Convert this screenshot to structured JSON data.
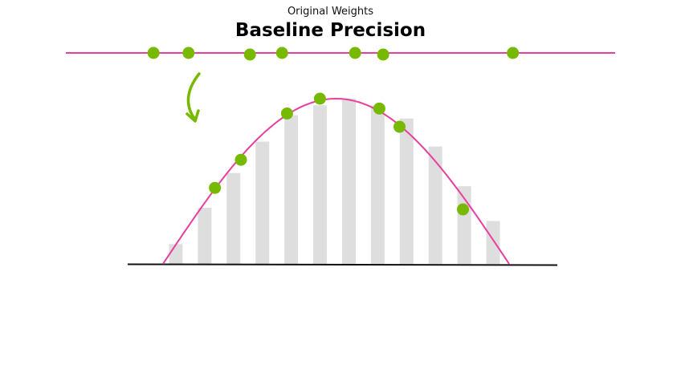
{
  "header": {
    "subtitle": "Original Weights",
    "title": "Baseline Precision"
  },
  "colors": {
    "curve": "#e83e9e",
    "weight_point": "#76b900",
    "bar": "#dedede",
    "axis": "#111111",
    "arrow": "#76b900"
  },
  "icons": {
    "arrow": "curved-down-arrow-icon"
  },
  "diagram": {
    "weights_line": {
      "x_range": [
        -4.7,
        4.7
      ]
    },
    "weights": [
      -3.2,
      -2.6,
      -1.55,
      -1.0,
      0.25,
      0.73,
      2.95
    ],
    "distribution": {
      "x_range": [
        -3,
        3
      ],
      "bins": [
        -2.75,
        -2.25,
        -1.75,
        -1.25,
        -0.75,
        -0.25,
        0.25,
        0.75,
        1.25,
        1.75,
        2.25,
        2.75
      ],
      "bar_heights": [
        0.12,
        0.34,
        0.55,
        0.74,
        0.9,
        0.96,
        1.0,
        0.96,
        0.88,
        0.71,
        0.47,
        0.26
      ],
      "weight_points": [
        {
          "x": -2.1,
          "y": 0.46
        },
        {
          "x": -1.65,
          "y": 0.63
        },
        {
          "x": -0.85,
          "y": 0.91
        },
        {
          "x": -0.28,
          "y": 1.0
        },
        {
          "x": 0.75,
          "y": 0.94
        },
        {
          "x": 1.1,
          "y": 0.83
        },
        {
          "x": 2.2,
          "y": 0.33
        }
      ]
    }
  }
}
